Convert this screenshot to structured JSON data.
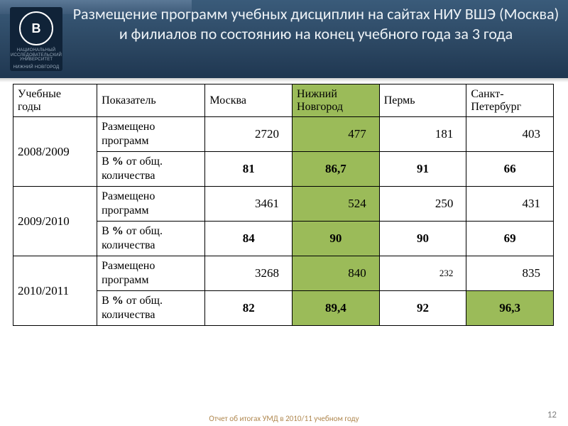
{
  "header": {
    "title": "Размещение программ учебных дисциплин на сайтах НИУ ВШЭ (Москва) и филиалов по состоянию на конец учебного года за 3 года",
    "logo_initials": "В",
    "logo_caption": "НАЦИОНАЛЬНЫЙ ИССЛЕДОВАТЕЛЬСКИЙ УНИВЕРСИТЕТ",
    "logo_caption2": "НИЖНИЙ НОВГОРОД"
  },
  "table": {
    "columns": [
      "Учебные годы",
      "Показатель",
      "Москва",
      "Нижний Новгород",
      "Пермь",
      "Санкт-Петербург"
    ],
    "column_widths_pct": [
      15.5,
      20,
      16.1,
      16.1,
      16.1,
      16.1
    ],
    "highlight_color": "#9bbb59",
    "border_color": "#000000",
    "font_family": "Times New Roman",
    "groups": [
      {
        "year": "2008/2009",
        "rows": [
          {
            "indicator": "Размещено программ",
            "values": [
              "2720",
              "477",
              "181",
              "403"
            ],
            "bold": false,
            "highlight_cols": []
          },
          {
            "indicator": "В % от общ. количества",
            "values": [
              "81",
              "86,7",
              "91",
              "66"
            ],
            "bold": true,
            "highlight_cols": []
          }
        ]
      },
      {
        "year": "2009/2010",
        "rows": [
          {
            "indicator": "Размещено программ",
            "values": [
              "3461",
              "524",
              "250",
              "431"
            ],
            "bold": false,
            "highlight_cols": []
          },
          {
            "indicator": "В % от общ. количества",
            "values": [
              "84",
              "90",
              "90",
              "69"
            ],
            "bold": true,
            "highlight_cols": []
          }
        ]
      },
      {
        "year": "2010/2011",
        "rows": [
          {
            "indicator": "Размещено программ",
            "values": [
              "3268",
              "840",
              "232",
              "835"
            ],
            "bold": false,
            "highlight_cols": [],
            "small_cols": [
              2
            ]
          },
          {
            "indicator": "В % от общ. количества",
            "values": [
              "82",
              "89,4",
              "92",
              "96,3"
            ],
            "bold": true,
            "highlight_cols": [
              3
            ]
          }
        ]
      }
    ],
    "header_highlight_col": 3
  },
  "footer": {
    "text": "Отчет об итогах УМД в 2010/11 учебном году",
    "page": "12"
  },
  "colors": {
    "header_gradient_top": "#3a5b7a",
    "header_gradient_bottom": "#1f3751",
    "logo_bg": "#102338",
    "highlight": "#9bbb59",
    "footer_text": "#b08850",
    "page_num": "#7f7f7f"
  }
}
